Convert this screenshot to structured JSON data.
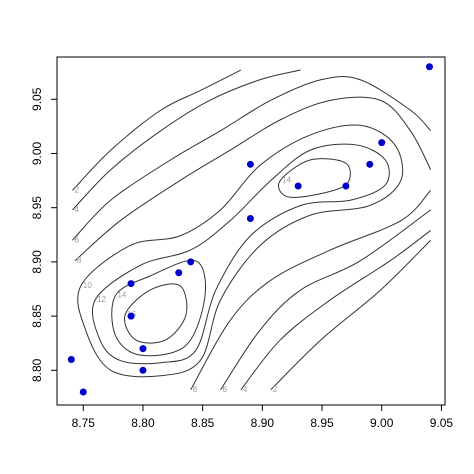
{
  "chart_data": {
    "type": "scatter",
    "x": [
      8.74,
      8.75,
      8.79,
      8.79,
      8.8,
      8.8,
      8.83,
      8.84,
      8.89,
      8.89,
      8.93,
      8.97,
      8.99,
      9.0,
      9.04
    ],
    "values": [
      8.81,
      8.78,
      8.88,
      8.85,
      8.82,
      8.8,
      8.89,
      8.9,
      8.99,
      8.94,
      8.97,
      8.97,
      8.99,
      9.01,
      9.08
    ],
    "color": "#0000cd",
    "xlim": [
      8.728,
      9.053
    ],
    "ylim": [
      8.768,
      9.089
    ],
    "xticks": [
      8.75,
      {
        "value": 8.8,
        "label": "8.80"
      },
      8.85,
      {
        "value": 8.9,
        "label": "8.90"
      },
      8.95,
      {
        "value": 9.0,
        "label": "9.00"
      },
      9.05
    ],
    "yticks": [
      {
        "value": 8.8,
        "label": "8.80"
      },
      8.85,
      {
        "value": 8.9,
        "label": "8.90"
      },
      8.95,
      {
        "value": 9.0,
        "label": "9.00"
      },
      9.05
    ],
    "contour_color": "#333333",
    "contours": [
      {
        "level": 2,
        "closed": false,
        "x": [
          8.741,
          8.773,
          8.815,
          8.848,
          8.882
        ],
        "y": [
          8.966,
          9.003,
          9.04,
          9.058,
          9.077
        ]
      },
      {
        "level": 2,
        "closed": false,
        "x": [
          8.907,
          8.949,
          8.999,
          9.041
        ],
        "y": [
          8.782,
          8.828,
          8.874,
          8.92
        ]
      },
      {
        "level": 4,
        "closed": false,
        "x": [
          8.741,
          8.773,
          8.815,
          8.856,
          8.898,
          8.932
        ],
        "y": [
          8.948,
          8.985,
          9.021,
          9.049,
          9.068,
          9.077
        ]
      },
      {
        "level": 4,
        "closed": false,
        "x": [
          8.882,
          8.915,
          8.957,
          9.007,
          9.041
        ],
        "y": [
          8.782,
          8.828,
          8.865,
          8.901,
          8.929
        ]
      },
      {
        "level": 6,
        "closed": false,
        "x": [
          8.741,
          8.773,
          8.823,
          8.865,
          8.907,
          8.949,
          8.982,
          9.024,
          9.041
        ],
        "y": [
          8.92,
          8.957,
          8.994,
          9.021,
          9.049,
          9.068,
          9.068,
          9.04,
          9.021
        ]
      },
      {
        "level": 6,
        "closed": false,
        "x": [
          8.865,
          8.898,
          8.932,
          8.982,
          9.041
        ],
        "y": [
          8.782,
          8.837,
          8.874,
          8.901,
          8.948
        ]
      },
      {
        "level": 8,
        "closed": false,
        "x": [
          8.743,
          8.781,
          8.831,
          8.873,
          8.915,
          8.957,
          8.999,
          9.024,
          9.041
        ],
        "y": [
          8.901,
          8.938,
          8.975,
          9.003,
          9.031,
          9.049,
          9.049,
          9.021,
          8.985
        ]
      },
      {
        "level": 8,
        "closed": false,
        "x": [
          8.84,
          8.873,
          8.907,
          8.957,
          9.016,
          9.041
        ],
        "y": [
          8.782,
          8.846,
          8.883,
          8.911,
          8.938,
          8.966
        ]
      },
      {
        "level": 10,
        "closed": true,
        "x": [
          8.748,
          8.789,
          8.831,
          8.865,
          8.898,
          8.94,
          8.982,
          9.011,
          9.016,
          8.99,
          8.94,
          8.898,
          8.865,
          8.848,
          8.815,
          8.773,
          8.752
        ],
        "y": [
          8.878,
          8.915,
          8.924,
          8.948,
          8.989,
          9.017,
          9.026,
          9.008,
          8.975,
          8.952,
          8.943,
          8.915,
          8.865,
          8.809,
          8.795,
          8.8,
          8.837
        ]
      },
      {
        "level": 12,
        "closed": true,
        "x": [
          8.76,
          8.798,
          8.84,
          8.873,
          8.907,
          8.94,
          8.978,
          9.003,
          9.003,
          8.974,
          8.932,
          8.89,
          8.861,
          8.844,
          8.815,
          8.781,
          8.764
        ],
        "y": [
          8.865,
          8.897,
          8.911,
          8.938,
          8.975,
          9.003,
          9.008,
          8.994,
          8.971,
          8.957,
          8.952,
          8.924,
          8.874,
          8.818,
          8.807,
          8.809,
          8.828
        ]
      },
      {
        "level": 14,
        "closed": true,
        "x": [
          8.915,
          8.94,
          8.97,
          8.97,
          8.94,
          8.919
        ],
        "y": [
          8.975,
          8.994,
          8.991,
          8.971,
          8.961,
          8.961
        ]
      },
      {
        "level": 14,
        "closed": true,
        "x": [
          8.777,
          8.806,
          8.844,
          8.852,
          8.836,
          8.798,
          8.777
        ],
        "y": [
          8.869,
          8.887,
          8.901,
          8.869,
          8.823,
          8.814,
          8.832
        ]
      },
      {
        "level": 16,
        "closed": true,
        "x": [
          8.785,
          8.806,
          8.831,
          8.836,
          8.819,
          8.794
        ],
        "y": [
          8.851,
          8.874,
          8.878,
          8.851,
          8.828,
          8.828
        ]
      }
    ]
  }
}
